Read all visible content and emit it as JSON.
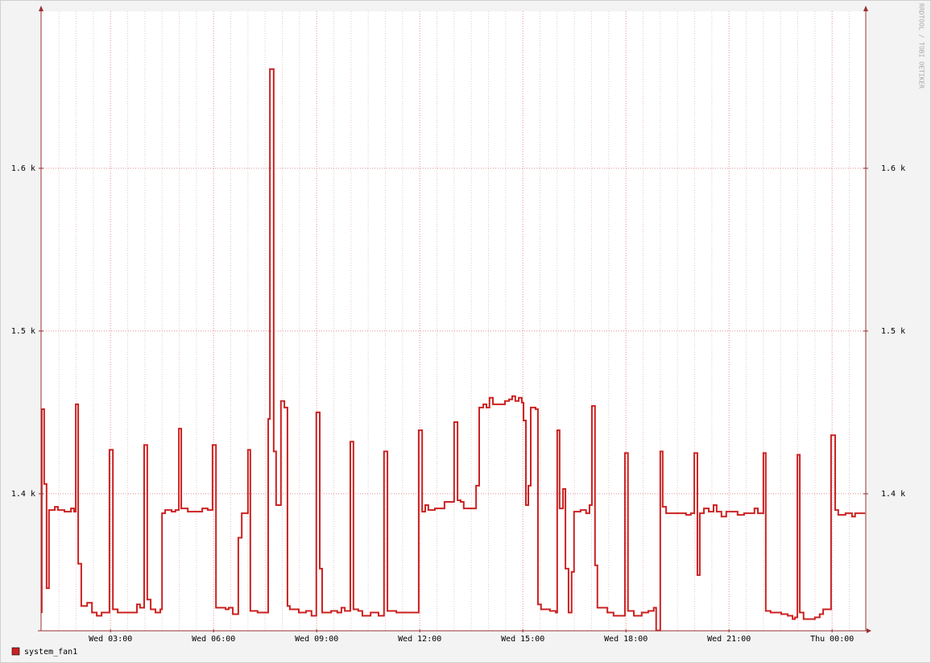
{
  "chart_data": {
    "type": "line",
    "line_style": "step",
    "watermark": "RRDTOOL / TOBI OETIKER",
    "series": [
      {
        "name": "system_fan1",
        "color": "#cc2222",
        "values": [
          1327.2,
          1452,
          1406,
          1342,
          1390,
          1392,
          1390,
          1389,
          1391,
          1389,
          1455,
          1357,
          1331,
          1333,
          1327,
          1325,
          1327,
          1427,
          1329,
          1327,
          1327,
          1327,
          1332,
          1330,
          1430,
          1335,
          1329,
          1327,
          1329,
          1388,
          1390,
          1389,
          1390,
          1440,
          1391,
          1389,
          1389,
          1391,
          1390,
          1430,
          1330,
          1329,
          1330,
          1326,
          1373,
          1388,
          1427,
          1328,
          1327,
          1327,
          1446,
          1661,
          1426,
          1393,
          1457,
          1453,
          1331,
          1329,
          1327,
          1328,
          1325,
          1450,
          1354,
          1327,
          1328,
          1327,
          1330,
          1328,
          1432,
          1329,
          1328,
          1325,
          1327,
          1325,
          1426,
          1328,
          1327,
          1327,
          1327,
          1439,
          1389,
          1393,
          1390,
          1391,
          1395,
          1395,
          1444,
          1396,
          1395,
          1391,
          1391,
          1405,
          1453,
          1455,
          1453,
          1459,
          1455,
          1455,
          1457,
          1458,
          1460,
          1457,
          1459,
          1456,
          1445,
          1393,
          1405,
          1453,
          1452,
          1332,
          1329,
          1328,
          1327,
          1439,
          1391,
          1403,
          1354,
          1327,
          1352,
          1389,
          1389,
          1390,
          1388,
          1393,
          1454,
          1356,
          1330,
          1330,
          1327,
          1325,
          1325,
          1425,
          1328,
          1325,
          1327,
          1328,
          1330,
          1316,
          1426,
          1392,
          1388,
          1388,
          1388,
          1387,
          1388,
          1425,
          1350,
          1388,
          1391,
          1389,
          1393,
          1389,
          1386,
          1389,
          1389,
          1387,
          1388,
          1388,
          1391,
          1388,
          1425,
          1328,
          1327,
          1326,
          1325,
          1323,
          1324,
          1424,
          1327,
          1323,
          1323,
          1324,
          1326,
          1329,
          1329,
          1436,
          1390,
          1387,
          1388,
          1386,
          1388,
          1388
        ]
      }
    ],
    "x": [
      0.98,
      1.0,
      1.07,
      1.14,
      1.21,
      1.38,
      1.47,
      1.66,
      1.85,
      1.94,
      1.99,
      2.06,
      2.15,
      2.32,
      2.46,
      2.6,
      2.74,
      2.97,
      3.07,
      3.21,
      3.42,
      3.68,
      3.77,
      3.86,
      3.98,
      4.07,
      4.17,
      4.31,
      4.45,
      4.5,
      4.59,
      4.78,
      4.89,
      4.99,
      5.06,
      5.25,
      5.53,
      5.67,
      5.83,
      5.97,
      6.07,
      6.35,
      6.44,
      6.56,
      6.72,
      6.82,
      7.0,
      7.07,
      7.28,
      7.54,
      7.59,
      7.64,
      7.75,
      7.82,
      7.96,
      8.06,
      8.15,
      8.22,
      8.48,
      8.69,
      8.85,
      8.99,
      9.09,
      9.16,
      9.42,
      9.6,
      9.72,
      9.82,
      9.98,
      10.07,
      10.21,
      10.33,
      10.57,
      10.8,
      10.96,
      11.06,
      11.32,
      11.5,
      11.74,
      11.97,
      12.07,
      12.16,
      12.25,
      12.44,
      12.72,
      12.86,
      13.0,
      13.1,
      13.19,
      13.28,
      13.38,
      13.64,
      13.73,
      13.85,
      13.94,
      14.03,
      14.13,
      14.32,
      14.48,
      14.6,
      14.69,
      14.78,
      14.88,
      14.97,
      15.02,
      15.09,
      15.16,
      15.23,
      15.37,
      15.44,
      15.53,
      15.79,
      15.96,
      16.0,
      16.07,
      16.17,
      16.24,
      16.33,
      16.42,
      16.49,
      16.59,
      16.68,
      16.84,
      16.94,
      17.01,
      17.1,
      17.17,
      17.29,
      17.46,
      17.64,
      17.81,
      17.97,
      18.06,
      18.23,
      18.46,
      18.65,
      18.81,
      18.88,
      19.0,
      19.07,
      19.17,
      19.35,
      19.61,
      19.75,
      19.89,
      19.99,
      20.08,
      20.15,
      20.27,
      20.41,
      20.55,
      20.64,
      20.78,
      20.92,
      21.09,
      21.25,
      21.44,
      21.65,
      21.74,
      21.84,
      22.0,
      22.07,
      22.21,
      22.52,
      22.71,
      22.85,
      22.92,
      22.99,
      23.06,
      23.17,
      23.34,
      23.5,
      23.64,
      23.74,
      23.88,
      23.97,
      24.09,
      24.18,
      24.39,
      24.58,
      24.67,
      24.96
    ],
    "xlim": [
      0.98,
      24.98
    ],
    "xticks": [
      {
        "value": 3,
        "label": "Wed 03:00"
      },
      {
        "value": 6,
        "label": "Wed 06:00"
      },
      {
        "value": 9,
        "label": "Wed 09:00"
      },
      {
        "value": 12,
        "label": "Wed 12:00"
      },
      {
        "value": 15,
        "label": "Wed 15:00"
      },
      {
        "value": 18,
        "label": "Wed 18:00"
      },
      {
        "value": 21,
        "label": "Wed 21:00"
      },
      {
        "value": 24,
        "label": "Thu 00:00"
      }
    ],
    "xminorticks": [
      1.5,
      2,
      2.5,
      3.5,
      4,
      4.5,
      5,
      5.5,
      6.5,
      7,
      7.5,
      8,
      8.5,
      9.5,
      10,
      10.5,
      11,
      11.5,
      12.5,
      13,
      13.5,
      14,
      14.5,
      15.5,
      16,
      16.5,
      17,
      17.5,
      18.5,
      19,
      19.5,
      20,
      20.5,
      21.5,
      22,
      22.5,
      23,
      23.5,
      24.5
    ],
    "ylim": [
      1315.8,
      1696.5
    ],
    "yticks": [
      {
        "value": 1400,
        "label": "1.4 k"
      },
      {
        "value": 1500,
        "label": "1.5 k"
      },
      {
        "value": 1600,
        "label": "1.6 k"
      }
    ],
    "grid": true,
    "legend": "bottom-left"
  }
}
